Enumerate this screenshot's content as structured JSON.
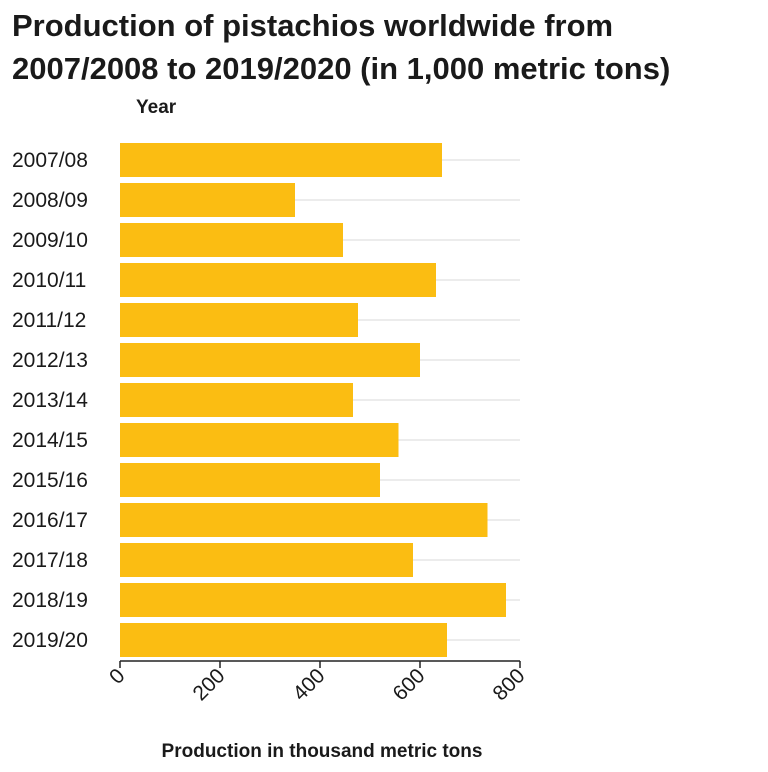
{
  "chart_data": {
    "type": "bar",
    "orientation": "horizontal",
    "title": "Production of pistachios worldwide from 2007/2008 to 2019/2020 (in 1,000 metric tons)",
    "ylabel": "Year",
    "xlabel": "Production in thousand metric tons",
    "categories": [
      "2007/08",
      "2008/09",
      "2009/10",
      "2010/11",
      "2011/12",
      "2012/13",
      "2013/14",
      "2014/15",
      "2015/16",
      "2016/17",
      "2017/18",
      "2018/19",
      "2019/20"
    ],
    "values": [
      644,
      350,
      446,
      632,
      476,
      600,
      466,
      557,
      520,
      735,
      586,
      772,
      654
    ],
    "xlim": [
      0,
      800
    ],
    "xticks": [
      "0",
      "200",
      "400",
      "600",
      "800"
    ],
    "grid": true,
    "bar_color": "#fbbd12",
    "grid_color": "#d9d9d9"
  }
}
